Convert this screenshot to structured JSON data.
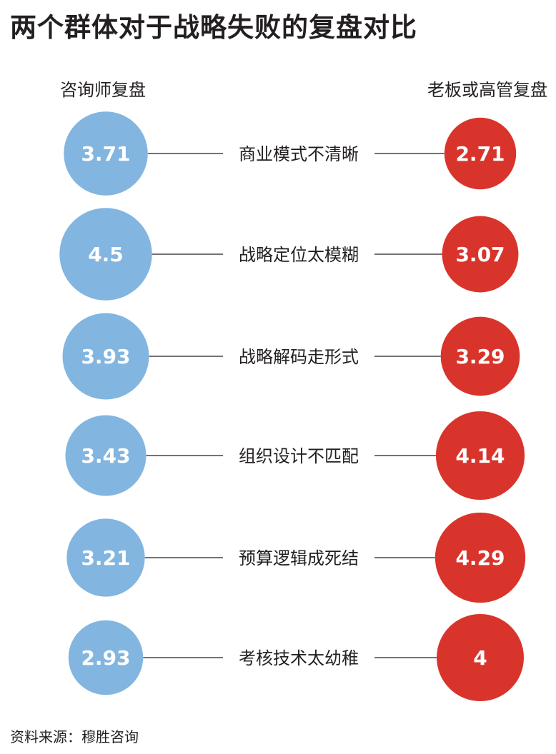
{
  "title": "两个群体对于战略失败的复盘对比",
  "source": "资料来源：穆胜咨询",
  "colors": {
    "left": "#82b5e0",
    "right": "#d9342b",
    "line": "#231f20",
    "text": "#231f20"
  },
  "chart_data": {
    "type": "bubble-comparison",
    "series": [
      {
        "name": "咨询师复盘",
        "values": [
          3.71,
          4.5,
          3.93,
          3.43,
          3.21,
          2.93
        ]
      },
      {
        "name": "老板或高管复盘",
        "values": [
          2.71,
          3.07,
          3.29,
          4.14,
          4.29,
          4
        ]
      }
    ],
    "categories": [
      "商业模式不清晰",
      "战略定位太模糊",
      "战略解码走形式",
      "组织设计不匹配",
      "预算逻辑成死结",
      "考核技术太幼稚"
    ]
  }
}
